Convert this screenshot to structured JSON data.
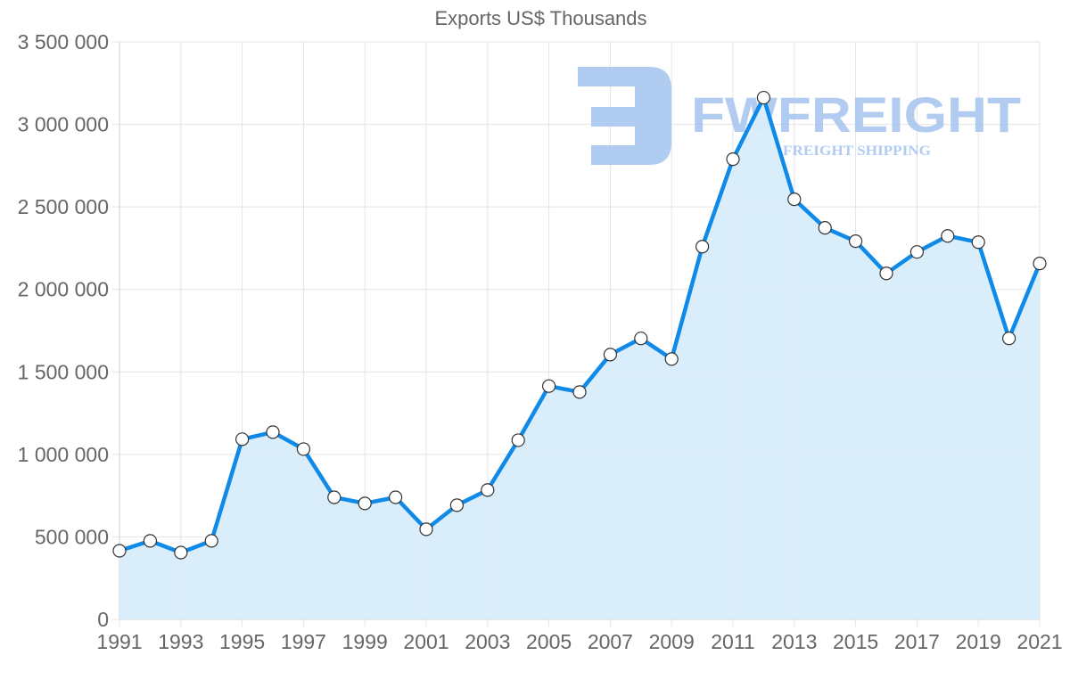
{
  "chart_data": {
    "type": "line",
    "title": "Exports US$ Thousands",
    "xlabel": "",
    "ylabel": "",
    "x": [
      1991,
      1992,
      1993,
      1994,
      1995,
      1996,
      1997,
      1998,
      1999,
      2000,
      2001,
      2002,
      2003,
      2004,
      2005,
      2006,
      2007,
      2008,
      2009,
      2010,
      2011,
      2012,
      2013,
      2014,
      2015,
      2016,
      2017,
      2018,
      2019,
      2020,
      2021
    ],
    "series": [
      {
        "name": "Exports US$ Thousands",
        "values": [
          416000,
          476000,
          405000,
          476000,
          1092000,
          1135000,
          1032000,
          740000,
          703000,
          740000,
          546000,
          692000,
          784000,
          1086000,
          1414000,
          1378000,
          1605000,
          1703000,
          1578000,
          2259000,
          2789000,
          3162000,
          2546000,
          2373000,
          2292000,
          2097000,
          2227000,
          2324000,
          2286000,
          1703000,
          2157000
        ],
        "line_color": "#0f8ae8",
        "fill_color": "#d8ecfb"
      }
    ],
    "yticks": [
      "0",
      "500 000",
      "1 000 000",
      "1 500 000",
      "2 000 000",
      "2 500 000",
      "3 000 000",
      "3 500 000"
    ],
    "xticks": [
      "1991",
      "1993",
      "1995",
      "1997",
      "1999",
      "2001",
      "2003",
      "2005",
      "2007",
      "2009",
      "2011",
      "2013",
      "2015",
      "2017",
      "2019",
      "2021"
    ],
    "ylim": [
      0,
      3500000
    ],
    "xlim": [
      1991,
      2021
    ],
    "grid": true,
    "legend": "none",
    "filled_area": true,
    "point_markers": "white circles with dark outline"
  },
  "watermark": {
    "brand": "FWFREIGHT",
    "tagline": "FREIGHT SHIPPING",
    "color": "#a9c6f0"
  }
}
